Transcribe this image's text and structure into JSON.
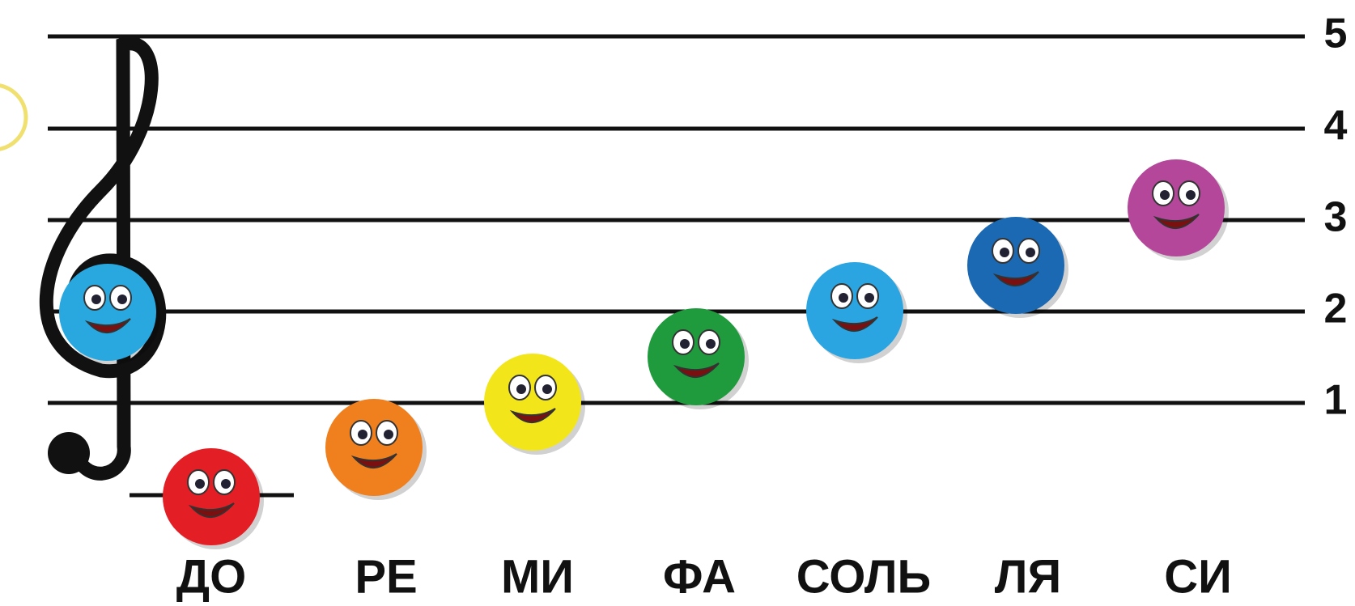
{
  "staff": {
    "line_numbers": [
      "1",
      "2",
      "3",
      "4",
      "5"
    ]
  },
  "notes": {
    "labels": [
      "ДО",
      "РЕ",
      "МИ",
      "ФА",
      "СОЛЬ",
      "ЛЯ",
      "СИ"
    ]
  }
}
